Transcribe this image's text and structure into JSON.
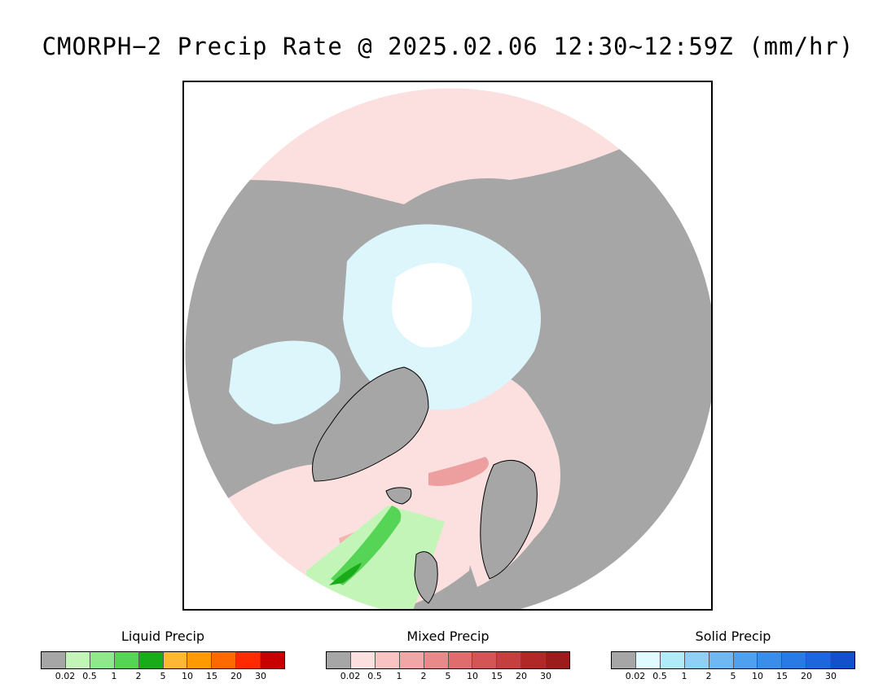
{
  "title": "CMORPH−2 Precip Rate @ 2025.02.06 12:30~12:59Z (mm/hr)",
  "map": {
    "projection": "north-polar-stereographic",
    "colors": {
      "outside": "#ffffff",
      "no_precip": "#a6a6a6",
      "mixed_light": "#fce0e0",
      "mixed_mid": "#f2a7a7",
      "mixed_heavy": "#e07878",
      "solid_light": "#dcf6fb",
      "solid_lighter": "#eefafd",
      "solid_core": "#ffffff",
      "liquid_light": "#c4f5b8",
      "liquid_mid": "#55d455",
      "liquid_heavy": "#1aab1a",
      "coastline": "#000000"
    }
  },
  "legends": [
    {
      "id": "liquid",
      "title": "Liquid Precip",
      "colors": [
        "#a6a6a6",
        "#c4f5b8",
        "#8fe88a",
        "#55d455",
        "#1aab1a",
        "#ffb833",
        "#ff9a00",
        "#ff6a00",
        "#ff2a00",
        "#c80000"
      ],
      "ticks": [
        "0.02",
        "0.5",
        "1",
        "2",
        "5",
        "10",
        "15",
        "20",
        "30"
      ]
    },
    {
      "id": "mixed",
      "title": "Mixed Precip",
      "colors": [
        "#a6a6a6",
        "#fce0e0",
        "#f7c3c3",
        "#f2a7a7",
        "#e88a8a",
        "#df6d6d",
        "#d45555",
        "#c53f3f",
        "#b02828",
        "#9c1c1c"
      ],
      "ticks": [
        "0.02",
        "0.5",
        "1",
        "2",
        "5",
        "10",
        "15",
        "20",
        "30"
      ]
    },
    {
      "id": "solid",
      "title": "Solid Precip",
      "colors": [
        "#a6a6a6",
        "#e0fbff",
        "#b0ecf7",
        "#90d0f5",
        "#6fb8f2",
        "#4fa0ee",
        "#3a8eea",
        "#2a7ae6",
        "#1e66dd",
        "#1450cc"
      ],
      "ticks": [
        "0.02",
        "0.5",
        "1",
        "2",
        "5",
        "10",
        "15",
        "20",
        "30"
      ]
    }
  ]
}
